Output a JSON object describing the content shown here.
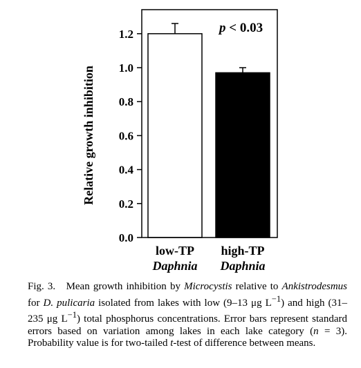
{
  "chart_data": {
    "type": "bar",
    "categories": [
      {
        "line1": "low-TP",
        "line2": "Daphnia"
      },
      {
        "line1": "high-TP",
        "line2": "Daphnia"
      }
    ],
    "values": [
      1.2,
      0.97
    ],
    "errors": [
      0.06,
      0.03
    ],
    "bar_fill": [
      "#ffffff",
      "#000000"
    ],
    "ylabel": "Relative growth inhibition",
    "xlabel": "",
    "ylim": [
      0.0,
      1.25
    ],
    "yticks": [
      0.0,
      0.2,
      0.4,
      0.6,
      0.8,
      1.0,
      1.2
    ],
    "ytick_labels": [
      "0.0",
      "0.2",
      "0.4",
      "0.6",
      "0.8",
      "1.0",
      "1.2"
    ],
    "annotation": {
      "p": "p",
      "rest": " < 0.03"
    }
  },
  "caption": {
    "label": "Fig. 3.",
    "t1": "Mean growth inhibition by ",
    "i1": "Microcystis",
    "t2": " relative to ",
    "i2": "Ankistrodesmus",
    "t3": " for ",
    "i3": "D. pulicaria",
    "t4": " isolated from lakes with low (9–13 μg L",
    "sup1": "−1",
    "t5": ") and high (31–235 μg L",
    "sup2": "−1",
    "t6": ") total phosphorus concentrations. Error bars represent standard errors based on variation among lakes in each lake category (",
    "i4": "n",
    "t7": " = 3). Probability value is for two-tailed ",
    "i5": "t",
    "t8": "-test of difference between means."
  }
}
